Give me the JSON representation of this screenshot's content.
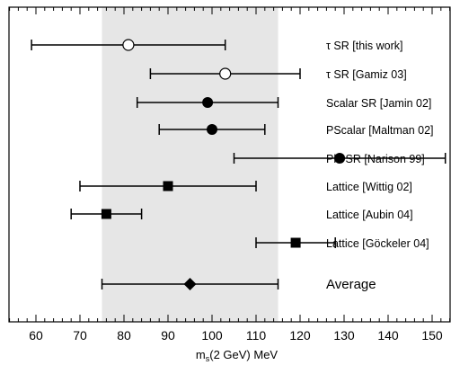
{
  "chart_data": {
    "type": "scatter",
    "xlabel": "m_s(2 GeV) MeV",
    "xlabel_main": "m",
    "xlabel_sub": "s",
    "xlabel_rest": "(2 GeV) MeV",
    "xlim": [
      51,
      169
    ],
    "x_ticks": [
      60,
      70,
      80,
      90,
      100,
      110,
      120,
      130,
      140,
      150
    ],
    "band": {
      "from": 75,
      "to": 115,
      "color": "#e6e6e6"
    },
    "points": [
      {
        "label": "τ SR [this work]",
        "value": 81,
        "low": 59,
        "high": 103,
        "marker": "open-circle"
      },
      {
        "label": "τ SR [Gamiz 03]",
        "value": 103,
        "low": 86,
        "high": 120,
        "marker": "open-circle"
      },
      {
        "label": "Scalar SR [Jamin 02]",
        "value": 99,
        "low": 83,
        "high": 115,
        "marker": "filled-circle"
      },
      {
        "label": "PScalar [Maltman 02]",
        "value": 100,
        "low": 88,
        "high": 112,
        "marker": "filled-circle"
      },
      {
        "label": "Phi SR [Narison 99]",
        "value": 129,
        "low": 105,
        "high": 153,
        "marker": "filled-circle"
      },
      {
        "label": "Lattice [Wittig 02]",
        "value": 90,
        "low": 70,
        "high": 110,
        "marker": "filled-square"
      },
      {
        "label": "Lattice [Aubin 04]",
        "value": 76,
        "low": 68,
        "high": 84,
        "marker": "filled-square"
      },
      {
        "label": "Lattice [Göckeler 04]",
        "value": 119,
        "low": 110,
        "high": 128,
        "marker": "filled-square"
      },
      {
        "label": "Average",
        "value": 95,
        "low": 75,
        "high": 115,
        "marker": "filled-diamond"
      }
    ],
    "grid": false
  }
}
